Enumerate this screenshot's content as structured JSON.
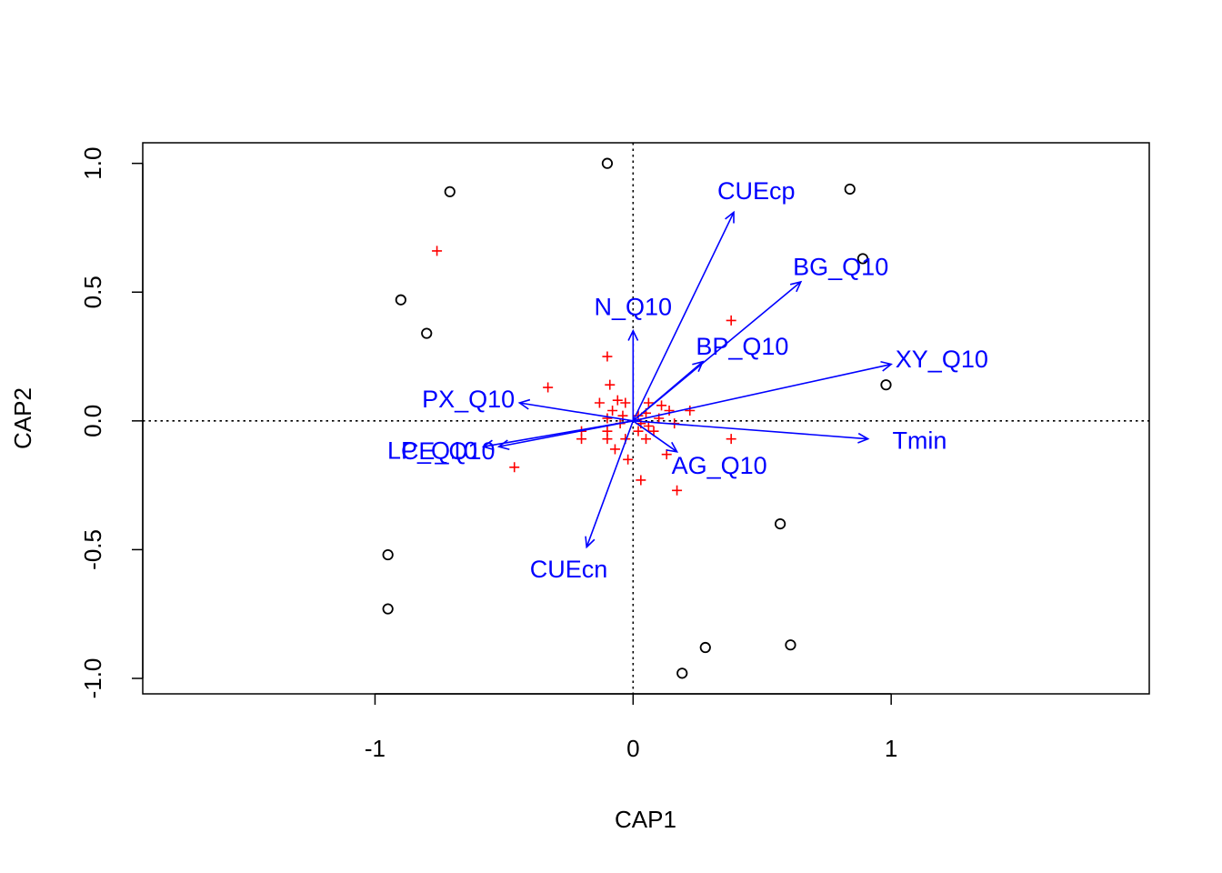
{
  "chart_data": {
    "type": "scatter",
    "subtype": "CAP ordination biplot",
    "title": "",
    "xlabel": "CAP1",
    "ylabel": "CAP2",
    "xlim": [
      -1.9,
      2.0
    ],
    "ylim": [
      -1.06,
      1.08
    ],
    "x_ticks": [
      -1,
      0,
      1
    ],
    "x_tick_labels": [
      "-1",
      "0",
      "1"
    ],
    "y_ticks": [
      -1.0,
      -0.5,
      0.0,
      0.5,
      1.0
    ],
    "y_tick_labels": [
      "-1.0",
      "-0.5",
      "0.0",
      "0.5",
      "1.0"
    ],
    "reference_lines": {
      "x": 0,
      "y": 0,
      "style": "dotted"
    },
    "colors": {
      "sites": "#000000",
      "species": "#ff0000",
      "vectors": "#0000ff",
      "reference": "#000000"
    },
    "sites": [
      {
        "x": -0.1,
        "y": 1.0
      },
      {
        "x": -0.71,
        "y": 0.89
      },
      {
        "x": -0.9,
        "y": 0.47
      },
      {
        "x": -0.8,
        "y": 0.34
      },
      {
        "x": 0.84,
        "y": 0.9
      },
      {
        "x": 0.89,
        "y": 0.63
      },
      {
        "x": 0.98,
        "y": 0.14
      },
      {
        "x": 0.57,
        "y": -0.4
      },
      {
        "x": -0.95,
        "y": -0.52
      },
      {
        "x": -0.95,
        "y": -0.73
      },
      {
        "x": 0.28,
        "y": -0.88
      },
      {
        "x": 0.61,
        "y": -0.87
      },
      {
        "x": 0.19,
        "y": -0.98
      }
    ],
    "species": [
      {
        "x": -0.76,
        "y": 0.66
      },
      {
        "x": 0.38,
        "y": 0.39
      },
      {
        "x": -0.1,
        "y": 0.25
      },
      {
        "x": -0.33,
        "y": 0.13
      },
      {
        "x": -0.09,
        "y": 0.14
      },
      {
        "x": -0.13,
        "y": 0.07
      },
      {
        "x": -0.06,
        "y": 0.08
      },
      {
        "x": -0.03,
        "y": 0.07
      },
      {
        "x": 0.06,
        "y": 0.07
      },
      {
        "x": 0.11,
        "y": 0.06
      },
      {
        "x": 0.14,
        "y": 0.04
      },
      {
        "x": 0.22,
        "y": 0.04
      },
      {
        "x": -0.08,
        "y": 0.04
      },
      {
        "x": 0.05,
        "y": 0.03
      },
      {
        "x": -0.04,
        "y": 0.02
      },
      {
        "x": 0.02,
        "y": 0.02
      },
      {
        "x": -0.1,
        "y": 0.01
      },
      {
        "x": 0.1,
        "y": 0.01
      },
      {
        "x": -0.05,
        "y": -0.01
      },
      {
        "x": 0.03,
        "y": -0.01
      },
      {
        "x": 0.06,
        "y": -0.02
      },
      {
        "x": 0.16,
        "y": -0.01
      },
      {
        "x": -0.2,
        "y": -0.04
      },
      {
        "x": -0.1,
        "y": -0.04
      },
      {
        "x": 0.02,
        "y": -0.04
      },
      {
        "x": 0.08,
        "y": -0.04
      },
      {
        "x": -0.2,
        "y": -0.07
      },
      {
        "x": -0.1,
        "y": -0.07
      },
      {
        "x": -0.03,
        "y": -0.07
      },
      {
        "x": 0.05,
        "y": -0.07
      },
      {
        "x": 0.38,
        "y": -0.07
      },
      {
        "x": -0.07,
        "y": -0.11
      },
      {
        "x": 0.13,
        "y": -0.13
      },
      {
        "x": -0.02,
        "y": -0.15
      },
      {
        "x": -0.46,
        "y": -0.18
      },
      {
        "x": 0.03,
        "y": -0.23
      },
      {
        "x": 0.17,
        "y": -0.27
      }
    ],
    "vectors": [
      {
        "name": "CUEcp",
        "x": 0.39,
        "y": 0.81
      },
      {
        "name": "BG_Q10",
        "x": 0.65,
        "y": 0.54
      },
      {
        "name": "N_Q10",
        "x": 0.0,
        "y": 0.35
      },
      {
        "name": "BP_Q10",
        "x": 0.27,
        "y": 0.23
      },
      {
        "name": "XY_Q10",
        "x": 1.0,
        "y": 0.22
      },
      {
        "name": "PX_Q10",
        "x": -0.44,
        "y": 0.07
      },
      {
        "name": "CE_Q10",
        "x": -0.52,
        "y": -0.1
      },
      {
        "name": "LP_Q10",
        "x": -0.58,
        "y": -0.1
      },
      {
        "name": "Tmin",
        "x": 0.91,
        "y": -0.07
      },
      {
        "name": "AG_Q10",
        "x": 0.17,
        "y": -0.12
      },
      {
        "name": "CUEcn",
        "x": -0.18,
        "y": -0.49
      }
    ]
  }
}
